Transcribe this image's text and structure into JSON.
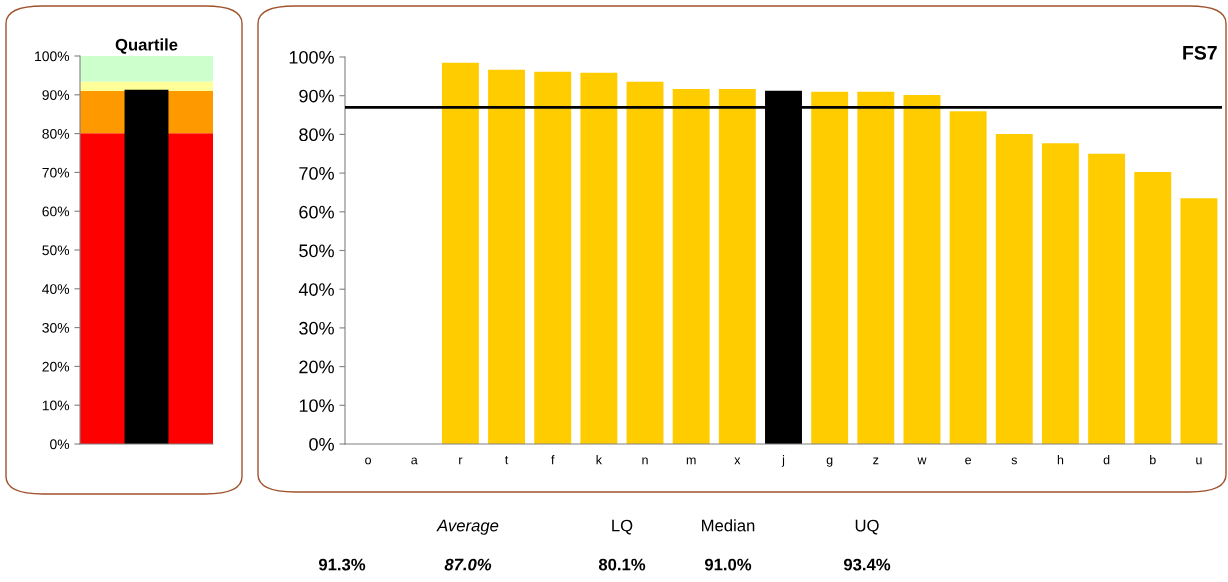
{
  "chart_data": [
    {
      "type": "bar",
      "title": "Quartile",
      "categories": [
        null
      ],
      "values": [
        91.3
      ],
      "colors": [
        "#000000"
      ],
      "ylim": [
        0,
        100
      ],
      "yticks": [
        {
          "value": 0,
          "label": "0%"
        },
        {
          "value": 10,
          "label": "10%"
        },
        {
          "value": 20,
          "label": "20%"
        },
        {
          "value": 30,
          "label": "30%"
        },
        {
          "value": 40,
          "label": "40%"
        },
        {
          "value": 50,
          "label": "50%"
        },
        {
          "value": 60,
          "label": "60%"
        },
        {
          "value": 70,
          "label": "70%"
        },
        {
          "value": 80,
          "label": "80%"
        },
        {
          "value": 90,
          "label": "90%"
        },
        {
          "value": 100,
          "label": "100%"
        }
      ],
      "bands": [
        {
          "axis": "y",
          "from": 0,
          "to": 80.1,
          "color": "#ff0000"
        },
        {
          "axis": "y",
          "from": 80.1,
          "to": 91.0,
          "color": "#ff9900"
        },
        {
          "axis": "y",
          "from": 91.0,
          "to": 93.4,
          "color": "#ffff99"
        },
        {
          "axis": "y",
          "from": 93.4,
          "to": 100,
          "color": "#ccffcc"
        }
      ],
      "tick_labels": "y",
      "grid": false,
      "legend": false
    },
    {
      "type": "bar",
      "title": "FS7",
      "categories": [
        "o",
        "a",
        "r",
        "t",
        "f",
        "k",
        "n",
        "m",
        "x",
        "j",
        "g",
        "z",
        "w",
        "e",
        "s",
        "h",
        "d",
        "b",
        "u"
      ],
      "values": [
        null,
        null,
        98.5,
        96.7,
        96.2,
        95.9,
        93.6,
        91.7,
        91.7,
        91.3,
        91.0,
        91.0,
        90.2,
        86.0,
        80.1,
        77.7,
        75.0,
        70.3,
        63.5
      ],
      "colors": [
        "#ffcc00",
        "#ffcc00",
        "#ffcc00",
        "#ffcc00",
        "#ffcc00",
        "#ffcc00",
        "#ffcc00",
        "#ffcc00",
        "#ffcc00",
        "#000000",
        "#ffcc00",
        "#ffcc00",
        "#ffcc00",
        "#ffcc00",
        "#ffcc00",
        "#ffcc00",
        "#ffcc00",
        "#ffcc00",
        "#ffcc00"
      ],
      "ylim": [
        0,
        100
      ],
      "yticks": [
        {
          "value": 0,
          "label": "0%"
        },
        {
          "value": 10,
          "label": "10%"
        },
        {
          "value": 20,
          "label": "20%"
        },
        {
          "value": 30,
          "label": "30%"
        },
        {
          "value": 40,
          "label": "40%"
        },
        {
          "value": 50,
          "label": "50%"
        },
        {
          "value": 60,
          "label": "60%"
        },
        {
          "value": 70,
          "label": "70%"
        },
        {
          "value": 80,
          "label": "80%"
        },
        {
          "value": 90,
          "label": "90%"
        },
        {
          "value": 100,
          "label": "100%"
        }
      ],
      "ref_lines": [
        {
          "axis": "y",
          "value": 87.0,
          "color": "#000000"
        }
      ],
      "grid": false,
      "legend": false
    },
    {
      "type": "other",
      "categories": [
        null,
        "Average",
        "LQ",
        "Median",
        "UQ"
      ],
      "value_labels": [
        "91.3%",
        "87.0%",
        "80.1%",
        "91.0%",
        "93.4%"
      ]
    }
  ]
}
